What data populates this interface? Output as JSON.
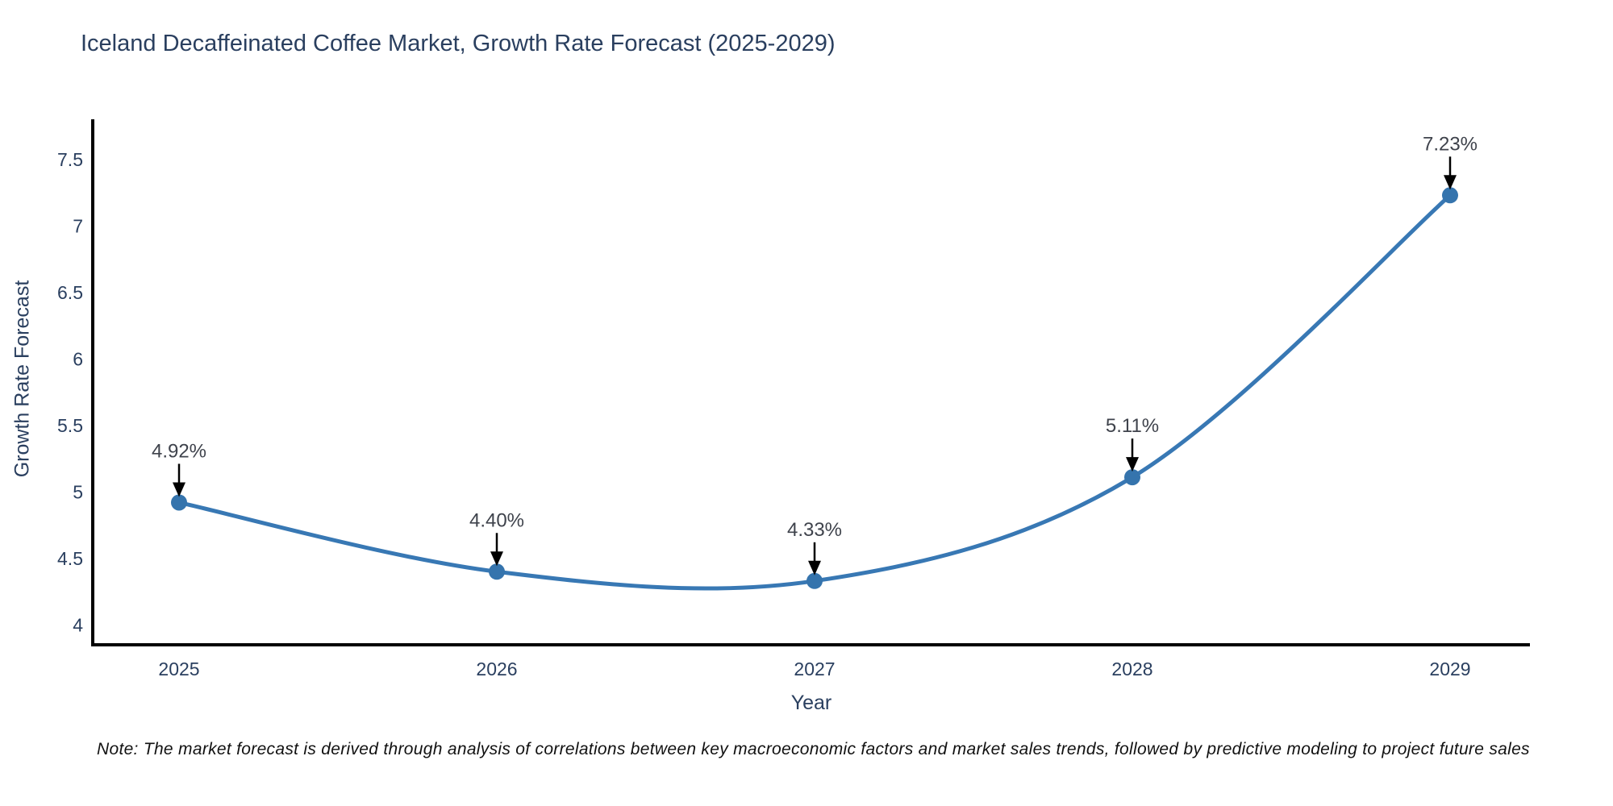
{
  "title": "Iceland Decaffeinated Coffee Market, Growth Rate Forecast (2025-2029)",
  "note": "Note: The market forecast is derived through analysis of correlations between key macroeconomic factors and market sales trends, followed by predictive modeling to project future sales",
  "chart_data": {
    "type": "line",
    "title": "Iceland Decaffeinated Coffee Market, Growth Rate Forecast (2025-2029)",
    "xlabel": "Year",
    "ylabel": "Growth Rate Forecast",
    "categories": [
      "2025",
      "2026",
      "2027",
      "2028",
      "2029"
    ],
    "values": [
      4.92,
      4.4,
      4.33,
      5.11,
      7.23
    ],
    "point_labels": [
      "4.92%",
      "4.40%",
      "4.33%",
      "5.11%",
      "7.23%"
    ],
    "line_shape": "spline",
    "grid": false,
    "legend": "none",
    "ylim": [
      3.85,
      7.85
    ],
    "yticks": [
      4,
      4.5,
      5,
      5.5,
      6,
      6.5,
      7,
      7.5
    ],
    "ytick_labels": [
      "4",
      "4.5",
      "5",
      "5.5",
      "6",
      "6.5",
      "7",
      "7.5"
    ],
    "colors": {
      "line": "#3878b4",
      "marker": "#3574ad",
      "axis_spine": "#000000",
      "axis_text": "#2a3f5f",
      "annotation_text": "#3f434c",
      "arrow": "#000000",
      "background": "#ffffff"
    }
  }
}
